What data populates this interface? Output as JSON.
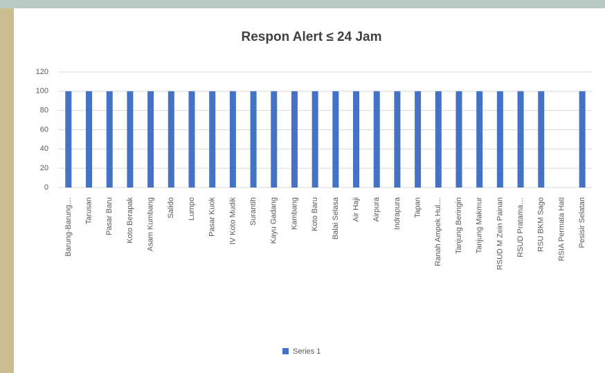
{
  "chart_data": {
    "type": "bar",
    "title": "Respon Alert ≤ 24 Jam",
    "categories": [
      "Barung-Barung…",
      "Tarusan",
      "Pasar Baru",
      "Koto Berapak",
      "Asam Kumbang",
      "Salido",
      "Lumpo",
      "Pasar Kuok",
      "IV Koto Mudik",
      "Surantih",
      "Kayu Gadang",
      "Kambang",
      "Koto Baru",
      "Balai Selasa",
      "Air Haji",
      "Airpura",
      "Indrapura",
      "Tapan",
      "Ranah Ampek Hul…",
      "Tanjung Beringin",
      "Tanjung Makmur",
      "RSUD M Zein Painan",
      "RSUD Pratama…",
      "RSU BKM Sago",
      "RSIA Permata Hati",
      "Pesisir Selatan"
    ],
    "series": [
      {
        "name": "Series 1",
        "color": "#4472c4",
        "values": [
          100,
          100,
          100,
          100,
          100,
          100,
          100,
          100,
          100,
          100,
          100,
          100,
          100,
          100,
          100,
          100,
          100,
          100,
          100,
          100,
          100,
          100,
          100,
          100,
          0,
          100
        ]
      }
    ],
    "ylim": [
      0,
      120
    ],
    "yticks": [
      0,
      20,
      40,
      60,
      80,
      100,
      120
    ],
    "grid": true,
    "legend": "bottom"
  }
}
